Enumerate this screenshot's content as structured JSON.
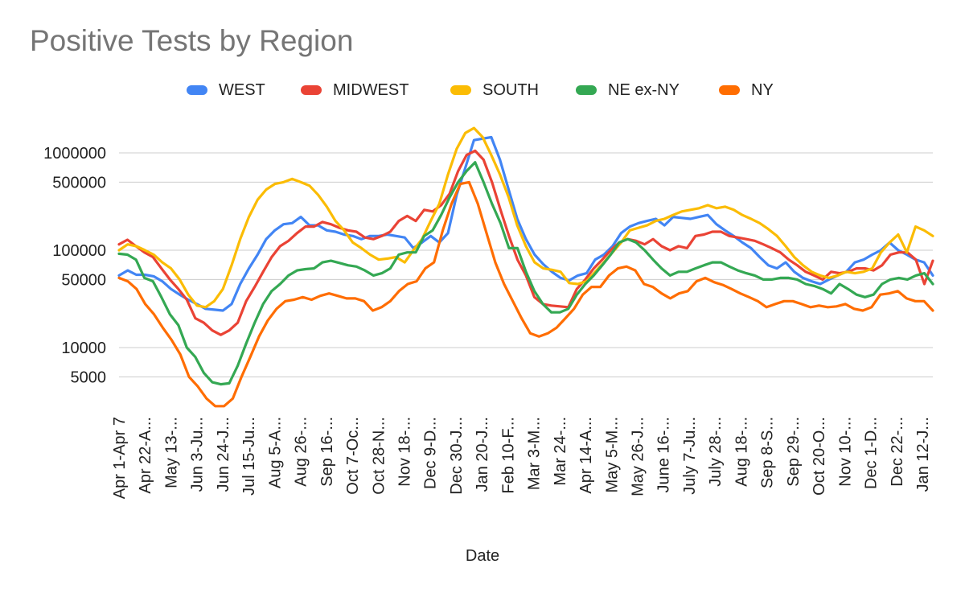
{
  "chart_data": {
    "type": "line",
    "title": "Positive Tests by Region",
    "xlabel": "Date",
    "ylabel": "",
    "yscale": "log",
    "ylim": [
      2500,
      2000000
    ],
    "yticks": [
      5000,
      10000,
      50000,
      100000,
      500000,
      1000000
    ],
    "ytick_labels": [
      "5000",
      "10000",
      "50000",
      "100000",
      "500000",
      "1000000"
    ],
    "legend_position": "top",
    "grid": true,
    "xtick_labels": [
      "Apr 1-Apr 7",
      "Apr 22-A...",
      "May 13-...",
      "Jun 3-Ju...",
      "Jun 24-J...",
      "Jul 15-Ju...",
      "Aug 5-A...",
      "Aug 26-...",
      "Sep 16-...",
      "Oct 7-Oc...",
      "Oct 28-N...",
      "Nov 18-...",
      "Dec 9-D...",
      "Dec 30-J...",
      "Jan 20-J...",
      "Feb 10-F...",
      "Mar 3-M...",
      "Mar 24-...",
      "Apr 14-A...",
      "May 5-M...",
      "May 26-J...",
      "June 16-...",
      "July 7-Ju...",
      "July 28-...",
      "Aug 18-...",
      "Sep 8-S...",
      "Sep 29-...",
      "Oct 20-O...",
      "Nov 10-...",
      "Dec 1-D...",
      "Dec 22-...",
      "Jan 12-J..."
    ],
    "series": [
      {
        "name": "WEST",
        "color": "#4285F4",
        "values": [
          55000,
          62000,
          56000,
          56000,
          54000,
          48000,
          40000,
          35000,
          31000,
          28000,
          25000,
          24500,
          24000,
          28000,
          45000,
          65000,
          90000,
          130000,
          160000,
          185000,
          190000,
          220000,
          180000,
          180000,
          160000,
          155000,
          145000,
          140000,
          130000,
          140000,
          140000,
          145000,
          140000,
          135000,
          105000,
          120000,
          140000,
          120000,
          150000,
          370000,
          700000,
          1350000,
          1400000,
          1450000,
          850000,
          420000,
          210000,
          130000,
          90000,
          72000,
          60000,
          52000,
          49000,
          55000,
          58000,
          80000,
          90000,
          110000,
          150000,
          175000,
          190000,
          200000,
          210000,
          180000,
          220000,
          215000,
          210000,
          220000,
          230000,
          185000,
          160000,
          140000,
          120000,
          105000,
          85000,
          70000,
          65000,
          75000,
          60000,
          52000,
          48000,
          45000,
          50000,
          55000,
          60000,
          75000,
          80000,
          90000,
          100000,
          120000,
          100000,
          90000,
          80000,
          75000,
          55000
        ]
      },
      {
        "name": "MIDWEST",
        "color": "#EA4335",
        "values": [
          115000,
          128000,
          110000,
          95000,
          85000,
          65000,
          50000,
          40000,
          31000,
          20000,
          18000,
          15000,
          13500,
          15000,
          18000,
          30000,
          42000,
          60000,
          85000,
          110000,
          125000,
          150000,
          175000,
          175000,
          195000,
          185000,
          170000,
          160000,
          155000,
          135000,
          130000,
          140000,
          155000,
          200000,
          225000,
          200000,
          260000,
          250000,
          290000,
          380000,
          650000,
          950000,
          1050000,
          850000,
          500000,
          260000,
          140000,
          80000,
          55000,
          33000,
          28000,
          27000,
          26500,
          26000,
          40000,
          50000,
          65000,
          80000,
          100000,
          120000,
          130000,
          125000,
          115000,
          130000,
          110000,
          100000,
          110000,
          105000,
          140000,
          145000,
          155000,
          155000,
          140000,
          135000,
          130000,
          125000,
          115000,
          105000,
          95000,
          80000,
          70000,
          60000,
          55000,
          50000,
          60000,
          58000,
          60000,
          65000,
          65000,
          62000,
          70000,
          90000,
          95000,
          95000,
          80000,
          45000,
          78000
        ]
      },
      {
        "name": "SOUTH",
        "color": "#FBBC04",
        "values": [
          100000,
          115000,
          110000,
          100000,
          90000,
          75000,
          65000,
          50000,
          35000,
          27000,
          26000,
          30000,
          40000,
          70000,
          130000,
          220000,
          330000,
          420000,
          480000,
          500000,
          540000,
          500000,
          460000,
          370000,
          280000,
          200000,
          160000,
          120000,
          105000,
          90000,
          80000,
          82000,
          85000,
          75000,
          100000,
          130000,
          200000,
          300000,
          600000,
          1100000,
          1600000,
          1800000,
          1450000,
          950000,
          600000,
          350000,
          180000,
          110000,
          75000,
          65000,
          63000,
          60000,
          46000,
          45000,
          48000,
          60000,
          75000,
          95000,
          120000,
          160000,
          170000,
          180000,
          200000,
          210000,
          230000,
          250000,
          260000,
          270000,
          290000,
          270000,
          280000,
          260000,
          230000,
          210000,
          190000,
          165000,
          140000,
          110000,
          85000,
          70000,
          60000,
          55000,
          52000,
          55000,
          60000,
          58000,
          60000,
          65000,
          95000,
          120000,
          145000,
          95000,
          175000,
          160000,
          140000
        ]
      },
      {
        "name": "NE ex-NY",
        "color": "#34A853",
        "values": [
          92000,
          90000,
          80000,
          52000,
          48000,
          33000,
          22000,
          17000,
          10000,
          8000,
          5500,
          4400,
          4200,
          4300,
          6500,
          11000,
          18000,
          28000,
          38000,
          45000,
          55000,
          62000,
          64000,
          65000,
          75000,
          78000,
          74000,
          70000,
          68000,
          62000,
          55000,
          58000,
          65000,
          90000,
          95000,
          95000,
          140000,
          160000,
          230000,
          350000,
          500000,
          650000,
          800000,
          500000,
          300000,
          190000,
          105000,
          105000,
          60000,
          38000,
          28000,
          23000,
          23000,
          25000,
          35000,
          45000,
          55000,
          70000,
          90000,
          120000,
          130000,
          120000,
          100000,
          80000,
          65000,
          55000,
          60000,
          60000,
          65000,
          70000,
          75000,
          75000,
          68000,
          62000,
          58000,
          55000,
          50000,
          50000,
          52000,
          52000,
          50000,
          45000,
          43000,
          40000,
          36000,
          45000,
          40000,
          35000,
          33000,
          35000,
          45000,
          50000,
          52000,
          50000,
          55000,
          58000,
          45000
        ]
      },
      {
        "name": "NY",
        "color": "#FF6D01",
        "values": [
          52000,
          48000,
          40000,
          28000,
          22000,
          16000,
          12000,
          8500,
          5000,
          4000,
          3000,
          2500,
          2500,
          3000,
          5000,
          8000,
          13000,
          19000,
          25000,
          30000,
          31000,
          33000,
          31000,
          34000,
          36000,
          34000,
          32000,
          32000,
          30000,
          24000,
          26000,
          30000,
          38000,
          45000,
          48000,
          65000,
          75000,
          160000,
          300000,
          480000,
          500000,
          300000,
          150000,
          75000,
          45000,
          30000,
          20000,
          14000,
          13000,
          14000,
          16000,
          20000,
          25000,
          35000,
          42000,
          42000,
          55000,
          65000,
          68000,
          62000,
          45000,
          42000,
          36000,
          32000,
          36000,
          38000,
          48000,
          52000,
          47000,
          44000,
          40000,
          36000,
          33000,
          30000,
          26000,
          28000,
          30000,
          30000,
          28000,
          26000,
          27000,
          26000,
          26500,
          28000,
          25000,
          24000,
          26000,
          35000,
          36000,
          38000,
          32000,
          30000,
          30000,
          24000
        ]
      }
    ]
  }
}
